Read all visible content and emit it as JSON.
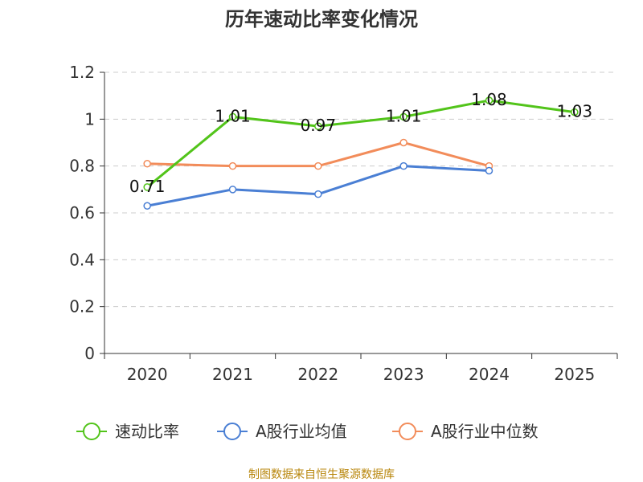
{
  "chart_data": {
    "type": "line",
    "title": "历年速动比率变化情况",
    "categories": [
      "2020",
      "2021",
      "2022",
      "2023",
      "2024",
      "2025"
    ],
    "ylim": [
      0,
      1.2
    ],
    "yticks": [
      "0",
      "0.2",
      "0.4",
      "0.6",
      "0.8",
      "1",
      "1.2"
    ],
    "grid": true,
    "legend_position": "bottom",
    "series": [
      {
        "name": "速动比率",
        "color": "#52c41a",
        "values": [
          0.71,
          1.01,
          0.97,
          1.01,
          1.08,
          1.03
        ],
        "labels": [
          "0.71",
          "1.01",
          "0.97",
          "1.01",
          "1.08",
          "1.03"
        ]
      },
      {
        "name": "A股行业均值",
        "color": "#4a7fd4",
        "values": [
          0.63,
          0.7,
          0.68,
          0.8,
          0.78,
          null
        ]
      },
      {
        "name": "A股行业中位数",
        "color": "#f28c5a",
        "values": [
          0.81,
          0.8,
          0.8,
          0.9,
          0.8,
          null
        ]
      }
    ]
  },
  "source_text": "制图数据来自恒生聚源数据库"
}
